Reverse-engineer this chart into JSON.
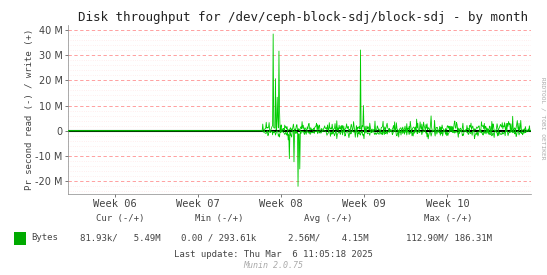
{
  "title": "Disk throughput for /dev/ceph-block-sdj/block-sdj - by month",
  "ylabel": "Pr second read (-) / write (+)",
  "xlabel_ticks": [
    "Week 06",
    "Week 07",
    "Week 08",
    "Week 09",
    "Week 10"
  ],
  "ylim": [
    -25000000,
    42000000
  ],
  "yticks": [
    -20000000,
    -10000000,
    0,
    10000000,
    20000000,
    30000000,
    40000000
  ],
  "line_color": "#00cc00",
  "background_color": "#ffffff",
  "zero_line_color": "#000000",
  "legend_label": "Bytes",
  "legend_color": "#00aa00",
  "cur_label": "Cur (-/+)",
  "min_label": "Min (-/+)",
  "avg_label": "Avg (-/+)",
  "max_label": "Max (-/+)",
  "cur_val": "81.93k/   5.49M",
  "min_val": "0.00 / 293.61k",
  "avg_val": "2.56M/    4.15M",
  "max_val": "112.90M/ 186.31M",
  "last_update": "Last update: Thu Mar  6 11:05:18 2025",
  "munin_text": "Munin 2.0.75",
  "rrdtool_text": "RRDTOOL / TOBI OETIKER",
  "n_points": 800,
  "figwidth": 5.47,
  "figheight": 2.75,
  "dpi": 100
}
